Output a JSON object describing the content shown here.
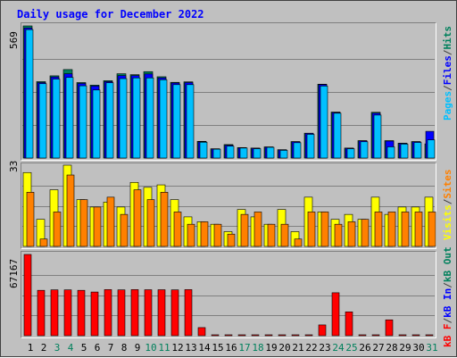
{
  "title": "Daily usage for December 2022",
  "colors": {
    "hits": "#00805c",
    "files": "#0000ff",
    "pages": "#00c0ff",
    "visits": "#ffff00",
    "sites": "#ff8000",
    "kbin": "#0000ff",
    "kbout": "#00805c",
    "kbf": "#ff0000",
    "weekend_label": "#00805c",
    "weekday_label": "#000000",
    "separator": "#808080"
  },
  "legends": {
    "hits_panel": [
      "Pages",
      "/",
      "Files",
      "/",
      "Hits"
    ],
    "sites_panel": [
      "Visits",
      "/",
      "Sites"
    ],
    "kb_panel": [
      "kB F",
      "/",
      "kB In",
      "/",
      "kB Out"
    ]
  },
  "chart_data": [
    {
      "type": "bar",
      "title": "Daily usage for December 2022",
      "ylim": [
        0,
        569
      ],
      "ymax_label": "569",
      "categories": [
        "1",
        "2",
        "3",
        "4",
        "5",
        "6",
        "7",
        "8",
        "9",
        "10",
        "11",
        "12",
        "13",
        "14",
        "15",
        "16",
        "17",
        "18",
        "19",
        "20",
        "21",
        "22",
        "23",
        "24",
        "25",
        "26",
        "27",
        "28",
        "29",
        "30",
        "31"
      ],
      "series": [
        {
          "name": "Hits",
          "values": [
            569,
            329,
            354,
            381,
            325,
            314,
            333,
            363,
            359,
            372,
            350,
            326,
            328,
            72,
            40,
            58,
            45,
            43,
            48,
            36,
            71,
            107,
            318,
            198,
            43,
            75,
            197,
            75,
            64,
            71,
            61
          ]
        },
        {
          "name": "Files",
          "values": [
            560,
            325,
            349,
            363,
            321,
            310,
            329,
            355,
            355,
            362,
            345,
            323,
            325,
            70,
            39,
            55,
            44,
            42,
            47,
            35,
            70,
            106,
            316,
            196,
            42,
            74,
            193,
            73,
            63,
            70,
            115
          ]
        },
        {
          "name": "Pages",
          "values": [
            553,
            320,
            340,
            347,
            311,
            293,
            324,
            342,
            345,
            345,
            337,
            316,
            316,
            68,
            38,
            51,
            43,
            40,
            46,
            33,
            66,
            102,
            310,
            193,
            40,
            70,
            185,
            48,
            60,
            67,
            78
          ]
        }
      ],
      "label_colors": [
        "weekday",
        "weekday",
        "weekend",
        "weekend",
        "weekday",
        "weekday",
        "weekday",
        "weekday",
        "weekday",
        "weekend",
        "weekend",
        "weekday",
        "weekday",
        "weekday",
        "weekday",
        "weekday",
        "weekend",
        "weekend",
        "weekday",
        "weekday",
        "weekday",
        "weekday",
        "weekday",
        "weekend",
        "weekend",
        "weekday",
        "weekday",
        "weekday",
        "weekday",
        "weekday",
        "weekend"
      ]
    },
    {
      "type": "bar",
      "ylim": [
        0,
        33
      ],
      "ymax_label": "33",
      "series": [
        {
          "name": "Visits",
          "values": [
            30,
            11,
            23,
            33,
            19,
            16,
            18,
            16,
            26,
            24,
            25,
            19,
            12,
            10,
            9,
            6,
            15,
            12,
            9,
            15,
            6,
            20,
            14,
            11,
            13,
            11,
            20,
            13,
            16,
            16,
            20
          ]
        },
        {
          "name": "Sites",
          "values": [
            22,
            3,
            14,
            29,
            19,
            16,
            20,
            13,
            23,
            19,
            22,
            14,
            9,
            10,
            9,
            5,
            13,
            14,
            9,
            9,
            3,
            14,
            14,
            9,
            10,
            11,
            14,
            14,
            14,
            14,
            14
          ]
        }
      ]
    },
    {
      "type": "bar",
      "ylim": [
        0,
        67167
      ],
      "ymax_label": "67167",
      "series": [
        {
          "name": "kB F",
          "values": [
            67167,
            37500,
            37900,
            37900,
            37500,
            36100,
            38100,
            37900,
            38100,
            38000,
            38000,
            37900,
            38100,
            6700,
            400,
            400,
            400,
            400,
            400,
            400,
            400,
            400,
            8900,
            35500,
            19700,
            400,
            400,
            13100,
            400,
            400,
            400
          ]
        },
        {
          "name": "kB In",
          "values": [
            0,
            0,
            0,
            0,
            0,
            0,
            0,
            0,
            0,
            0,
            0,
            0,
            0,
            0,
            0,
            0,
            0,
            0,
            0,
            0,
            0,
            0,
            0,
            0,
            0,
            0,
            0,
            0,
            0,
            0,
            0
          ]
        },
        {
          "name": "kB Out",
          "values": [
            0,
            0,
            0,
            0,
            0,
            0,
            0,
            0,
            0,
            0,
            0,
            0,
            0,
            0,
            0,
            0,
            0,
            0,
            0,
            0,
            0,
            0,
            0,
            0,
            0,
            0,
            0,
            0,
            0,
            0,
            0
          ]
        }
      ]
    }
  ]
}
